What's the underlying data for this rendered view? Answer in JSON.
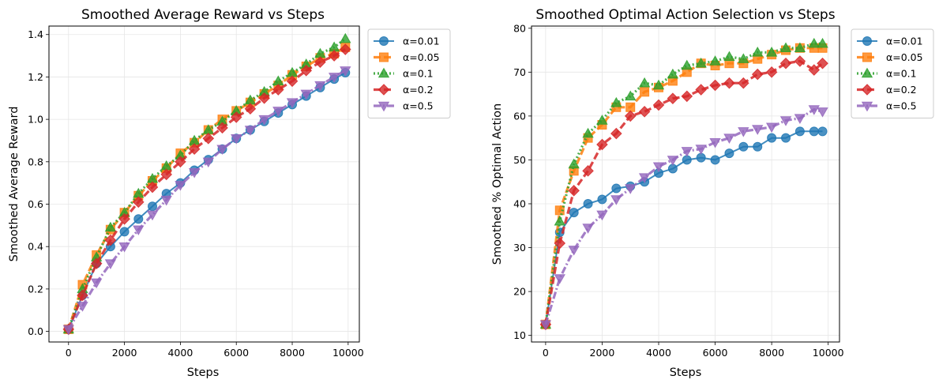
{
  "colors": {
    "a001": "#1f77b4",
    "a005": "#ff7f0e",
    "a01": "#2ca02c",
    "a02": "#d62728",
    "a05": "#9467bd"
  },
  "chart_data": [
    {
      "type": "line",
      "title": "Smoothed Average Reward vs Steps",
      "xlabel": "Steps",
      "ylabel": "Smoothed Average Reward",
      "xlim": [
        -700,
        10400
      ],
      "ylim": [
        -0.05,
        1.44
      ],
      "xticks": [
        0,
        2000,
        4000,
        6000,
        8000,
        10000
      ],
      "yticks": [
        0.0,
        0.2,
        0.4,
        0.6,
        0.8,
        1.0,
        1.2,
        1.4
      ],
      "xtick_labels": [
        "0",
        "2000",
        "4000",
        "6000",
        "8000",
        "10000"
      ],
      "ytick_labels": [
        "0.0",
        "0.2",
        "0.4",
        "0.6",
        "0.8",
        "1.0",
        "1.2",
        "1.4"
      ],
      "grid": true,
      "legend": "outside-upper-right",
      "series": [
        {
          "name": "α=0.01",
          "color": "#1f77b4",
          "marker": "circle",
          "dash": "solid",
          "x": [
            0,
            500,
            1000,
            1500,
            2000,
            2500,
            3000,
            3500,
            4000,
            4500,
            5000,
            5500,
            6000,
            6500,
            7000,
            7500,
            8000,
            8500,
            9000,
            9500,
            9900
          ],
          "y": [
            0.01,
            0.17,
            0.32,
            0.4,
            0.47,
            0.53,
            0.59,
            0.65,
            0.7,
            0.76,
            0.81,
            0.86,
            0.91,
            0.95,
            0.99,
            1.03,
            1.07,
            1.11,
            1.15,
            1.19,
            1.22
          ]
        },
        {
          "name": "α=0.05",
          "color": "#ff7f0e",
          "marker": "square",
          "dash": "dashed",
          "x": [
            0,
            500,
            1000,
            1500,
            2000,
            2500,
            3000,
            3500,
            4000,
            4500,
            5000,
            5500,
            6000,
            6500,
            7000,
            7500,
            8000,
            8500,
            9000,
            9500,
            9900
          ],
          "y": [
            0.01,
            0.22,
            0.36,
            0.48,
            0.56,
            0.64,
            0.71,
            0.77,
            0.84,
            0.89,
            0.95,
            1.0,
            1.04,
            1.08,
            1.12,
            1.16,
            1.21,
            1.25,
            1.29,
            1.31,
            1.34
          ]
        },
        {
          "name": "α=0.1",
          "color": "#2ca02c",
          "marker": "triangle-up",
          "dash": "dotted",
          "x": [
            0,
            500,
            1000,
            1500,
            2000,
            2500,
            3000,
            3500,
            4000,
            4500,
            5000,
            5500,
            6000,
            6500,
            7000,
            7500,
            8000,
            8500,
            9000,
            9500,
            9900
          ],
          "y": [
            0.01,
            0.2,
            0.35,
            0.49,
            0.56,
            0.65,
            0.72,
            0.78,
            0.83,
            0.9,
            0.95,
            0.99,
            1.04,
            1.09,
            1.13,
            1.18,
            1.22,
            1.26,
            1.31,
            1.34,
            1.38
          ]
        },
        {
          "name": "α=0.2",
          "color": "#d62728",
          "marker": "diamond",
          "dash": "dashed",
          "x": [
            0,
            500,
            1000,
            1500,
            2000,
            2500,
            3000,
            3500,
            4000,
            4500,
            5000,
            5500,
            6000,
            6500,
            7000,
            7500,
            8000,
            8500,
            9000,
            9500,
            9900
          ],
          "y": [
            0.01,
            0.17,
            0.32,
            0.43,
            0.53,
            0.61,
            0.68,
            0.74,
            0.8,
            0.86,
            0.91,
            0.96,
            1.01,
            1.05,
            1.1,
            1.14,
            1.18,
            1.23,
            1.27,
            1.3,
            1.33
          ]
        },
        {
          "name": "α=0.5",
          "color": "#9467bd",
          "marker": "triangle-down",
          "dash": "dashdot",
          "x": [
            0,
            500,
            1000,
            1500,
            2000,
            2500,
            3000,
            3500,
            4000,
            4500,
            5000,
            5500,
            6000,
            6500,
            7000,
            7500,
            8000,
            8500,
            9000,
            9500,
            9900
          ],
          "y": [
            0.01,
            0.12,
            0.23,
            0.32,
            0.4,
            0.48,
            0.55,
            0.62,
            0.69,
            0.75,
            0.8,
            0.86,
            0.91,
            0.95,
            1.0,
            1.04,
            1.08,
            1.12,
            1.16,
            1.2,
            1.23
          ]
        }
      ]
    },
    {
      "type": "line",
      "title": "Smoothed Optimal Action Selection vs Steps",
      "xlabel": "Steps",
      "ylabel": "Smoothed % Optimal Action",
      "xlim": [
        -500,
        10400
      ],
      "ylim": [
        8.5,
        80.5
      ],
      "xticks": [
        0,
        2000,
        4000,
        6000,
        8000,
        10000
      ],
      "yticks": [
        10,
        20,
        30,
        40,
        50,
        60,
        70,
        80
      ],
      "xtick_labels": [
        "0",
        "2000",
        "4000",
        "6000",
        "8000",
        "10000"
      ],
      "ytick_labels": [
        "10",
        "20",
        "30",
        "40",
        "50",
        "60",
        "70",
        "80"
      ],
      "grid": true,
      "legend": "outside-upper-right",
      "series": [
        {
          "name": "α=0.01",
          "color": "#1f77b4",
          "marker": "circle",
          "dash": "solid",
          "x": [
            0,
            500,
            1000,
            1500,
            2000,
            2500,
            3000,
            3500,
            4000,
            4500,
            5000,
            5500,
            6000,
            6500,
            7000,
            7500,
            8000,
            8500,
            9000,
            9500,
            9800
          ],
          "y": [
            12.5,
            33.5,
            38.0,
            40.0,
            41.0,
            43.5,
            44.0,
            45.0,
            47.0,
            48.0,
            50.0,
            50.5,
            50.0,
            51.5,
            53.0,
            53.0,
            55.0,
            55.0,
            56.5,
            56.5,
            56.5
          ]
        },
        {
          "name": "α=0.05",
          "color": "#ff7f0e",
          "marker": "square",
          "dash": "dashed",
          "x": [
            0,
            500,
            1000,
            1500,
            2000,
            2500,
            3000,
            3500,
            4000,
            4500,
            5000,
            5500,
            6000,
            6500,
            7000,
            7500,
            8000,
            8500,
            9000,
            9500,
            9800
          ],
          "y": [
            12.5,
            38.5,
            47.5,
            55.0,
            58.0,
            62.0,
            62.0,
            65.5,
            66.5,
            68.0,
            70.0,
            72.0,
            71.5,
            72.0,
            72.0,
            73.0,
            74.0,
            75.0,
            75.5,
            75.5,
            75.5
          ]
        },
        {
          "name": "α=0.1",
          "color": "#2ca02c",
          "marker": "triangle-up",
          "dash": "dotted",
          "x": [
            0,
            500,
            1000,
            1500,
            2000,
            2500,
            3000,
            3500,
            4000,
            4500,
            5000,
            5500,
            6000,
            6500,
            7000,
            7500,
            8000,
            8500,
            9000,
            9500,
            9800
          ],
          "y": [
            12.5,
            36.0,
            49.0,
            56.0,
            59.0,
            63.0,
            64.5,
            67.5,
            67.0,
            69.5,
            71.5,
            72.0,
            72.5,
            73.5,
            73.0,
            74.5,
            74.5,
            75.5,
            75.5,
            76.5,
            76.5
          ]
        },
        {
          "name": "α=0.2",
          "color": "#d62728",
          "marker": "diamond",
          "dash": "dashed",
          "x": [
            0,
            500,
            1000,
            1500,
            2000,
            2500,
            3000,
            3500,
            4000,
            4500,
            5000,
            5500,
            6000,
            6500,
            7000,
            7500,
            8000,
            8500,
            9000,
            9500,
            9800
          ],
          "y": [
            12.5,
            31.0,
            43.0,
            47.5,
            53.5,
            56.0,
            60.0,
            61.0,
            62.5,
            64.0,
            64.5,
            66.0,
            67.0,
            67.5,
            67.5,
            69.5,
            70.0,
            72.0,
            72.5,
            70.5,
            72.0
          ]
        },
        {
          "name": "α=0.5",
          "color": "#9467bd",
          "marker": "triangle-down",
          "dash": "dashdot",
          "x": [
            0,
            500,
            1000,
            1500,
            2000,
            2500,
            3000,
            3500,
            4000,
            4500,
            5000,
            5500,
            6000,
            6500,
            7000,
            7500,
            8000,
            8500,
            9000,
            9500,
            9800
          ],
          "y": [
            12.5,
            23.0,
            29.5,
            34.5,
            37.5,
            41.0,
            43.5,
            46.0,
            48.5,
            50.0,
            52.0,
            52.5,
            54.0,
            55.0,
            56.5,
            57.0,
            57.5,
            59.0,
            59.5,
            61.5,
            61.0
          ]
        }
      ]
    }
  ]
}
